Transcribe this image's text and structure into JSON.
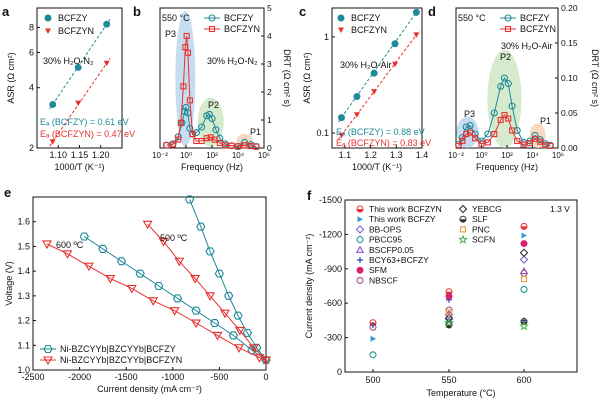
{
  "colors": {
    "blue": "#1f8a9a",
    "red": "#e8312f",
    "black": "#111111",
    "ellipse_blue": "#bcd6ec",
    "ellipse_green": "#cfe6c4",
    "ellipse_orange": "#f5d3b8"
  },
  "chart_data": [
    {
      "panel": "a",
      "type": "scatter",
      "xlabel": "1000/T (K⁻¹)",
      "ylabel": "ASR (Ω cm²)",
      "xlim": [
        1.05,
        1.25
      ],
      "ylim": [
        2,
        10
      ],
      "yscale": "log",
      "xticks": [
        "1.10",
        "1.15",
        "1.20"
      ],
      "yticks": [
        "2",
        "4",
        "6",
        "8"
      ],
      "legend": [
        "BCFZY",
        "BCFZYN"
      ],
      "annotation": "30% H₂O-N₂",
      "ea": [
        "Eₐ (BCFZY) = 0.61 eV",
        "Eₐ (BCFZYN) = 0.47 eV"
      ],
      "series": [
        {
          "name": "BCFZY",
          "x": [
            1.087,
            1.147,
            1.214
          ],
          "y": [
            3.3,
            5.05,
            8.3
          ]
        },
        {
          "name": "BCFZYN",
          "x": [
            1.087,
            1.147,
            1.214
          ],
          "y": [
            2.15,
            3.35,
            5.3
          ]
        }
      ]
    },
    {
      "panel": "b",
      "type": "line",
      "xlabel": "Frequency (Hz)",
      "ylabel": "DRT (Ω cm² s)",
      "xlim": [
        -2,
        6
      ],
      "ylim": [
        0,
        5
      ],
      "xticks": [
        "10⁻²",
        "10⁰",
        "10²",
        "10⁴",
        "10⁶"
      ],
      "yticks": [
        "0",
        "1",
        "2",
        "3",
        "4",
        "5"
      ],
      "legend": [
        "BCFZY",
        "BCFZYN"
      ],
      "temperature": "550 °C",
      "annotation": "30% H₂O-N₂",
      "peaks": [
        "P3",
        "P2",
        "P1"
      ],
      "series": [
        {
          "name": "BCFZY",
          "logf": [
            -1.5,
            -1,
            -0.6,
            -0.3,
            -0.1,
            0.0,
            0.15,
            0.3,
            0.5,
            0.8,
            1.2,
            1.6,
            1.8,
            2.0,
            2.3,
            2.6,
            3.0,
            3.5,
            4.0,
            4.5,
            5.0,
            5.4
          ],
          "y": [
            0.1,
            0.15,
            0.4,
            0.9,
            1.3,
            1.45,
            1.25,
            0.7,
            0.5,
            0.55,
            0.75,
            1.15,
            1.2,
            1.05,
            0.65,
            0.35,
            0.15,
            0.08,
            0.05,
            0.2,
            0.12,
            0.05
          ]
        },
        {
          "name": "BCFZYN",
          "logf": [
            -1.5,
            -1,
            -0.6,
            -0.4,
            -0.2,
            -0.05,
            0.05,
            0.15,
            0.3,
            0.5,
            0.8,
            1.2,
            1.6,
            1.9,
            2.2,
            2.6,
            3.0,
            3.5,
            4.0,
            4.5,
            5.0,
            5.4
          ],
          "y": [
            0.1,
            0.12,
            0.3,
            0.9,
            2.2,
            3.6,
            4.0,
            3.4,
            1.7,
            0.5,
            0.25,
            0.25,
            0.35,
            0.38,
            0.3,
            0.18,
            0.1,
            0.08,
            0.06,
            0.1,
            0.07,
            0.05
          ]
        }
      ]
    },
    {
      "panel": "c",
      "type": "scatter",
      "xlabel": "1000/T (K⁻¹)",
      "ylabel": "ASR (Ω cm²)",
      "xlim": [
        1.05,
        1.4
      ],
      "ylim": [
        0.07,
        2
      ],
      "yscale": "log",
      "xticks": [
        "1.1",
        "1.2",
        "1.3",
        "1.4"
      ],
      "yticks": [
        "0.1",
        "1"
      ],
      "legend": [
        "BCFZY",
        "BCFZYN"
      ],
      "annotation": "30% H₂O-Air",
      "ea": [
        "Eₐ (BCFZY) = 0.88 eV",
        "Eₐ (BCFZYN) = 0.83 eV"
      ],
      "series": [
        {
          "name": "BCFZY",
          "x": [
            1.087,
            1.147,
            1.214,
            1.295,
            1.378
          ],
          "y": [
            0.145,
            0.24,
            0.42,
            0.85,
            1.8
          ]
        },
        {
          "name": "BCFZYN",
          "x": [
            1.087,
            1.147,
            1.214,
            1.295,
            1.378
          ],
          "y": [
            0.095,
            0.155,
            0.27,
            0.52,
            1.05
          ]
        }
      ]
    },
    {
      "panel": "d",
      "type": "line",
      "xlabel": "Frequency (Hz)",
      "ylabel": "DRT (Ω cm² s)",
      "xlim": [
        -2,
        6
      ],
      "ylim": [
        0,
        0.2
      ],
      "xticks": [
        "10⁻²",
        "10⁰",
        "10²",
        "10⁴",
        "10⁶"
      ],
      "yticks": [
        "0.00",
        "0.05",
        "0.10",
        "0.15",
        "0.20"
      ],
      "legend": [
        "BCFZY",
        "BCFZYN"
      ],
      "temperature": "550 °C",
      "annotation": "30% H₂O-Air",
      "peaks": [
        "P3",
        "P2",
        "P1"
      ],
      "series": [
        {
          "name": "BCFZY",
          "logf": [
            -1.8,
            -1.5,
            -1.2,
            -0.9,
            -0.5,
            0.0,
            0.5,
            1.0,
            1.5,
            1.8,
            2.1,
            2.4,
            2.8,
            3.3,
            3.8,
            4.2,
            4.6,
            5.0,
            5.4
          ],
          "y": [
            0.005,
            0.015,
            0.03,
            0.032,
            0.02,
            0.01,
            0.02,
            0.05,
            0.088,
            0.1,
            0.092,
            0.06,
            0.025,
            0.008,
            0.01,
            0.018,
            0.012,
            0.006,
            0.004
          ]
        },
        {
          "name": "BCFZYN",
          "logf": [
            -1.8,
            -1.5,
            -1.2,
            -0.9,
            -0.5,
            0.0,
            0.5,
            1.0,
            1.5,
            1.8,
            2.1,
            2.4,
            2.8,
            3.3,
            3.8,
            4.2,
            4.6,
            5.0,
            5.4
          ],
          "y": [
            0.003,
            0.01,
            0.02,
            0.022,
            0.014,
            0.006,
            0.008,
            0.02,
            0.04,
            0.047,
            0.042,
            0.025,
            0.01,
            0.005,
            0.007,
            0.013,
            0.009,
            0.004,
            0.003
          ]
        }
      ]
    },
    {
      "panel": "e",
      "type": "line",
      "xlabel": "Current density (mA cm⁻²)",
      "ylabel": "Voltage (V)",
      "xlim": [
        -2500,
        0
      ],
      "ylim": [
        1.0,
        1.7
      ],
      "xticks": [
        "-2500",
        "-2000",
        "-1500",
        "-1000",
        "-500",
        "0"
      ],
      "yticks": [
        "1.0",
        "1.1",
        "1.2",
        "1.3",
        "1.4",
        "1.5",
        "1.6"
      ],
      "labels": [
        "600 ºC",
        "500 ºC"
      ],
      "legend": [
        "Ni-BZCYYb|BZCYYb|BCFZY",
        "Ni-BZCYYb|BZCYYb|BCFZYN"
      ],
      "series": [
        {
          "name": "Ni-BZCYYb|BZCYYb|BCFZY 500",
          "x": [
            -820,
            -700,
            -600,
            -500,
            -400,
            -300,
            -200,
            -100,
            0
          ],
          "y": [
            1.69,
            1.58,
            1.48,
            1.39,
            1.3,
            1.22,
            1.15,
            1.09,
            1.04
          ]
        },
        {
          "name": "Ni-BZCYYb|BZCYYb|BCFZY 600",
          "x": [
            -1950,
            -1750,
            -1550,
            -1350,
            -1150,
            -950,
            -750,
            -550,
            -350,
            -150,
            0
          ],
          "y": [
            1.54,
            1.49,
            1.44,
            1.39,
            1.34,
            1.29,
            1.24,
            1.19,
            1.14,
            1.08,
            1.04
          ]
        },
        {
          "name": "Ni-BZCYYb|BZCYYb|BCFZYN 500",
          "x": [
            -1270,
            -1100,
            -930,
            -760,
            -600,
            -440,
            -280,
            -130,
            0
          ],
          "y": [
            1.59,
            1.52,
            1.44,
            1.37,
            1.3,
            1.23,
            1.16,
            1.09,
            1.04
          ]
        },
        {
          "name": "Ni-BZCYYb|BZCYYb|BCFZYN 600",
          "x": [
            -2350,
            -2130,
            -1900,
            -1670,
            -1440,
            -1210,
            -980,
            -750,
            -520,
            -290,
            -70,
            0
          ],
          "y": [
            1.51,
            1.47,
            1.42,
            1.37,
            1.33,
            1.28,
            1.24,
            1.19,
            1.14,
            1.09,
            1.05,
            1.04
          ]
        }
      ]
    },
    {
      "panel": "f",
      "type": "scatter",
      "xlabel": "Temperature (°C)",
      "ylabel": "Current density (mA cm⁻²)",
      "ylim": [
        -1500,
        0
      ],
      "categories": [
        "500",
        "550",
        "600"
      ],
      "yticks": [
        "-1500",
        "-1200",
        "-900",
        "-600",
        "-300",
        "0"
      ],
      "annotation": "1.3 V",
      "series": [
        {
          "name": "This work BCFZYN",
          "values": [
            -430,
            -700,
            -1270
          ]
        },
        {
          "name": "This work BCFZY",
          "values": [
            -290,
            -650,
            -1190
          ]
        },
        {
          "name": "BB-OPS",
          "values": [
            null,
            -500,
            -980
          ]
        },
        {
          "name": "PBCC95",
          "values": [
            -150,
            -430,
            -720
          ]
        },
        {
          "name": "BSCFP0.05",
          "values": [
            null,
            -480,
            -880
          ]
        },
        {
          "name": "BCY63+BCFZY",
          "values": [
            -410,
            -630,
            -450
          ]
        },
        {
          "name": "SFM",
          "values": [
            null,
            -660,
            -1120
          ]
        },
        {
          "name": "NBSCF",
          "values": [
            -390,
            -540,
            -860
          ]
        },
        {
          "name": "YEBCG",
          "values": [
            null,
            -470,
            -1040
          ]
        },
        {
          "name": "SLF",
          "values": [
            null,
            -410,
            -440
          ]
        },
        {
          "name": "PNC",
          "values": [
            null,
            -520,
            -810
          ]
        },
        {
          "name": "SCFN",
          "values": [
            null,
            -430,
            -400
          ]
        }
      ]
    }
  ]
}
